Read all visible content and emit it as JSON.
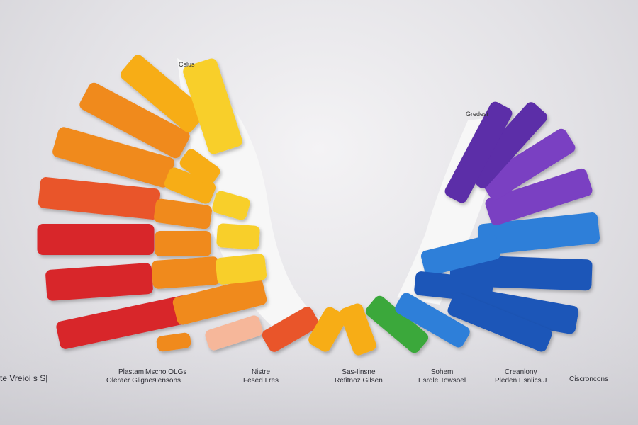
{
  "tags": {
    "left_top": "Cslus",
    "right_top": "Gredesi"
  },
  "captions": [
    {
      "lines": [
        "te Vreioi s S|"
      ],
      "bold_first": true
    },
    {
      "lines": [
        "Plastam",
        "Oleraer Glignes"
      ]
    },
    {
      "lines": [
        "Mscho OLGs",
        "Dlensons"
      ]
    },
    {
      "lines": [
        "Nistre",
        "Fesed Lres"
      ]
    },
    {
      "lines": [
        "Sas-Iinsne",
        "Refitnoz Gilsen"
      ]
    },
    {
      "lines": [
        "Sohem",
        "Esrdle Towsoel"
      ]
    },
    {
      "lines": [
        "Creanlony",
        "Pleden Esnlics J"
      ]
    },
    {
      "lines": [
        "Ciscroncons"
      ]
    }
  ],
  "colors": {
    "red": "#d8262a",
    "orange_red": "#e9542a",
    "orange": "#f08a1f",
    "amber": "#f7ad19",
    "yellow": "#f8cf2a",
    "green": "#3aa83a",
    "blue": "#2f7fd9",
    "navy": "#1f56b8",
    "violet": "#7a3fc2",
    "purple": "#5b2da8"
  }
}
